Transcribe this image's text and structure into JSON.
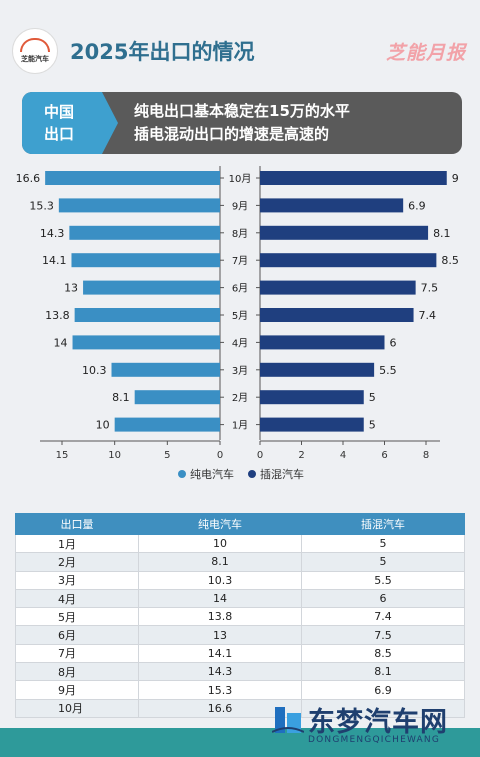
{
  "header": {
    "logo_text": "芝能汽车",
    "title": "2025年出口的情况",
    "brand": "芝能月报"
  },
  "banner": {
    "left_line1": "中国",
    "left_line2": "出口",
    "line1": "纯电出口基本稳定在15万的水平",
    "line2": "插电混动出口的增速是高速的"
  },
  "colors": {
    "bev": "#3a8fc4",
    "phev": "#1f3f7f",
    "header_blue": "#3f8fbf",
    "bottom_bar": "#2e9a9a"
  },
  "chart_data": {
    "type": "bar",
    "orientation": "horizontal-butterfly",
    "categories": [
      "10月",
      "9月",
      "8月",
      "7月",
      "6月",
      "5月",
      "4月",
      "3月",
      "2月",
      "1月"
    ],
    "series": [
      {
        "name": "纯电汽车",
        "values": [
          16.6,
          15.3,
          14.3,
          14.1,
          13,
          13.8,
          14,
          10.3,
          8.1,
          10
        ],
        "labels": [
          "16.6",
          "15.3",
          "14.3",
          "14.1",
          "13",
          "13.8",
          "14",
          "10.3",
          "8.1",
          "10"
        ]
      },
      {
        "name": "插混汽车",
        "values": [
          9,
          6.9,
          8.1,
          8.5,
          7.5,
          7.4,
          6,
          5.5,
          5,
          5
        ],
        "labels": [
          "9",
          "6.9",
          "8.1",
          "8.5",
          "7.5",
          "7.4",
          "6",
          "5.5",
          "5",
          "5"
        ]
      }
    ],
    "left_axis": {
      "ticks": [
        "15",
        "10",
        "5",
        "0"
      ],
      "xlim": [
        0,
        16
      ]
    },
    "right_axis": {
      "ticks": [
        "0",
        "2",
        "4",
        "6",
        "8"
      ],
      "xlim": [
        0,
        9.2
      ]
    },
    "legend": "bottom-center"
  },
  "table": {
    "headers": [
      "出口量",
      "纯电汽车",
      "插混汽车"
    ],
    "rows": [
      [
        "1月",
        "10",
        "5"
      ],
      [
        "2月",
        "8.1",
        "5"
      ],
      [
        "3月",
        "10.3",
        "5.5"
      ],
      [
        "4月",
        "14",
        "6"
      ],
      [
        "5月",
        "13.8",
        "7.4"
      ],
      [
        "6月",
        "13",
        "7.5"
      ],
      [
        "7月",
        "14.1",
        "8.5"
      ],
      [
        "8月",
        "14.3",
        "8.1"
      ],
      [
        "9月",
        "15.3",
        "6.9"
      ],
      [
        "10月",
        "16.6",
        ""
      ]
    ]
  },
  "watermark": {
    "cn": "东梦汽车网",
    "en": "DONGMENGQICHEWANG"
  }
}
